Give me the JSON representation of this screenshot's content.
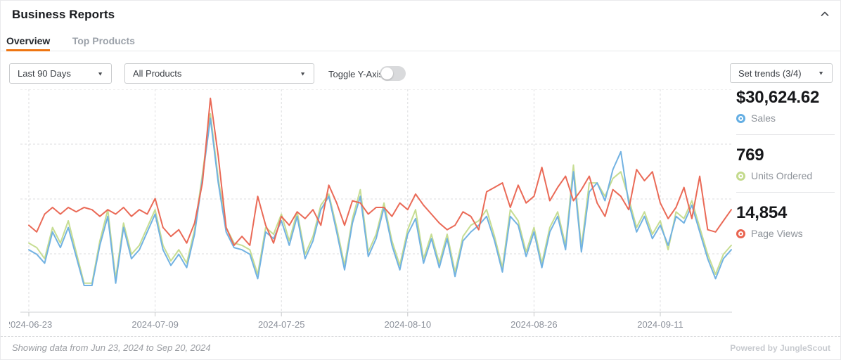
{
  "header": {
    "title": "Business Reports"
  },
  "tabs": [
    {
      "label": "Overview",
      "active": true
    },
    {
      "label": "Top Products",
      "active": false
    }
  ],
  "controls": {
    "date_range": {
      "value": "Last 90 Days"
    },
    "product_filter": {
      "value": "All Products"
    },
    "toggle_y_axis": {
      "label": "Toggle Y-Axis",
      "on": false
    },
    "set_trends": {
      "value": "Set trends (3/4)"
    }
  },
  "metrics": [
    {
      "value": "$30,624.62",
      "label": "Sales",
      "color": "#64aee3"
    },
    {
      "value": "769",
      "label": "Units Ordered",
      "color": "#c3da8c"
    },
    {
      "value": "14,854",
      "label": "Page Views",
      "color": "#e96450"
    }
  ],
  "chart_data": {
    "type": "line",
    "title": "",
    "xlabel": "",
    "ylabel": "",
    "y_axis_hidden": true,
    "grid": "dashed",
    "legend_position": "right-metrics-panel",
    "x_start_date": "2024-06-23",
    "x_end_date": "2024-09-20",
    "x_tick_labels": [
      "2024-06-23",
      "2024-07-09",
      "2024-07-25",
      "2024-08-10",
      "2024-08-26",
      "2024-09-11"
    ],
    "x_tick_interval_days": 16,
    "ylim": [
      0,
      100
    ],
    "note": "values are normalized 0-100 of plot height; y axis is hidden in UI",
    "series": [
      {
        "name": "Units Ordered",
        "color": "#c6dd92",
        "values": [
          31,
          29,
          24,
          38,
          31,
          41,
          27,
          13,
          13,
          32,
          46,
          15,
          40,
          26,
          30,
          38,
          46,
          30,
          23,
          28,
          22,
          37,
          62,
          89,
          60,
          38,
          31,
          30,
          28,
          17,
          38,
          35,
          44,
          32,
          45,
          26,
          34,
          48,
          53,
          38,
          21,
          42,
          55,
          27,
          35,
          49,
          32,
          21,
          37,
          46,
          24,
          35,
          22,
          35,
          18,
          34,
          39,
          41,
          46,
          34,
          20,
          46,
          41,
          27,
          38,
          22,
          38,
          45,
          30,
          66,
          29,
          58,
          58,
          52,
          60,
          63,
          51,
          38,
          45,
          35,
          41,
          28,
          45,
          42,
          50,
          38,
          26,
          17,
          26,
          30
        ]
      },
      {
        "name": "Sales",
        "color": "#72b2e2",
        "values": [
          28,
          26,
          22,
          36,
          29,
          38,
          25,
          12,
          12,
          30,
          43,
          13,
          38,
          24,
          28,
          36,
          44,
          28,
          21,
          26,
          20,
          35,
          60,
          87,
          58,
          36,
          29,
          28,
          26,
          15,
          36,
          33,
          41,
          30,
          43,
          24,
          32,
          46,
          52,
          36,
          19,
          40,
          52,
          25,
          33,
          47,
          30,
          19,
          35,
          42,
          22,
          33,
          20,
          33,
          16,
          32,
          36,
          39,
          43,
          32,
          18,
          43,
          39,
          25,
          36,
          20,
          36,
          43,
          28,
          63,
          27,
          54,
          58,
          50,
          64,
          72,
          49,
          36,
          43,
          33,
          39,
          30,
          43,
          40,
          48,
          36,
          24,
          15,
          24,
          28
        ]
      },
      {
        "name": "Page Views",
        "color": "#ea6a57",
        "values": [
          39,
          36,
          44,
          47,
          44,
          47,
          45,
          47,
          46,
          43,
          46,
          44,
          47,
          43,
          46,
          44,
          51,
          38,
          34,
          37,
          31,
          40,
          58,
          96,
          70,
          38,
          30,
          34,
          30,
          52,
          39,
          31,
          43,
          39,
          45,
          42,
          46,
          39,
          57,
          49,
          39,
          50,
          49,
          44,
          47,
          47,
          43,
          49,
          46,
          53,
          48,
          44,
          40,
          37,
          39,
          45,
          43,
          37,
          54,
          56,
          58,
          47,
          57,
          49,
          52,
          65,
          50,
          56,
          61,
          50,
          55,
          61,
          49,
          43,
          55,
          52,
          46,
          64,
          59,
          63,
          49,
          42,
          47,
          56,
          42,
          61,
          37,
          36,
          41,
          46
        ]
      }
    ]
  },
  "footer": {
    "range_note": "Showing data from Jun 23, 2024 to Sep 20, 2024",
    "powered_by": "Powered by JungleScout"
  }
}
